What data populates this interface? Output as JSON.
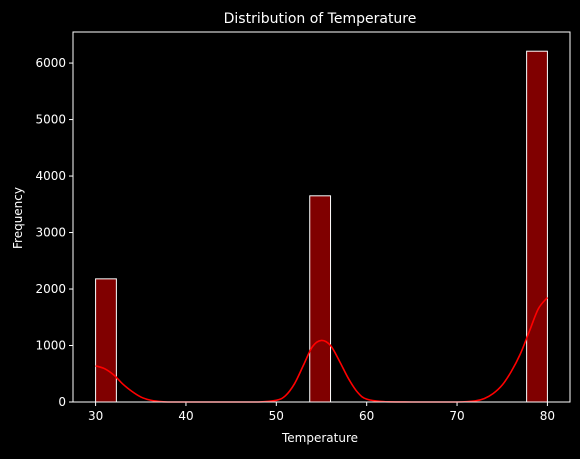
{
  "chart_data": {
    "type": "bar",
    "title": "Distribution of Temperature",
    "xlabel": "Temperature",
    "ylabel": "Frequency",
    "xlim": [
      27.5,
      82.5
    ],
    "ylim": [
      0,
      6550
    ],
    "xticks": [
      30,
      40,
      50,
      60,
      70,
      80
    ],
    "yticks": [
      0,
      1000,
      2000,
      3000,
      4000,
      5000,
      6000
    ],
    "bins": [
      {
        "x0": 30,
        "x1": 32.3,
        "count": 2180
      },
      {
        "x0": 53.7,
        "x1": 56.0,
        "count": 3650
      },
      {
        "x0": 77.7,
        "x1": 80,
        "count": 6210
      }
    ],
    "kde": {
      "x": [
        30,
        31,
        32,
        33,
        34,
        35,
        36,
        37,
        38,
        40,
        45,
        48,
        50,
        51,
        52,
        53,
        54,
        55,
        56,
        57,
        58,
        59,
        60,
        62,
        65,
        70,
        72,
        73,
        74,
        75,
        76,
        77,
        78,
        79,
        80
      ],
      "y": [
        640,
        590,
        480,
        320,
        190,
        90,
        35,
        10,
        0,
        0,
        0,
        0,
        30,
        110,
        320,
        650,
        980,
        1090,
        1000,
        720,
        410,
        170,
        50,
        5,
        0,
        0,
        20,
        60,
        150,
        300,
        540,
        850,
        1250,
        1650,
        1850
      ]
    },
    "colors": {
      "bar_fill": "#800000",
      "bar_edge": "#ffffff",
      "kde_line": "#ff0000",
      "axis": "#ffffff",
      "background": "#000000"
    },
    "grid": false
  }
}
